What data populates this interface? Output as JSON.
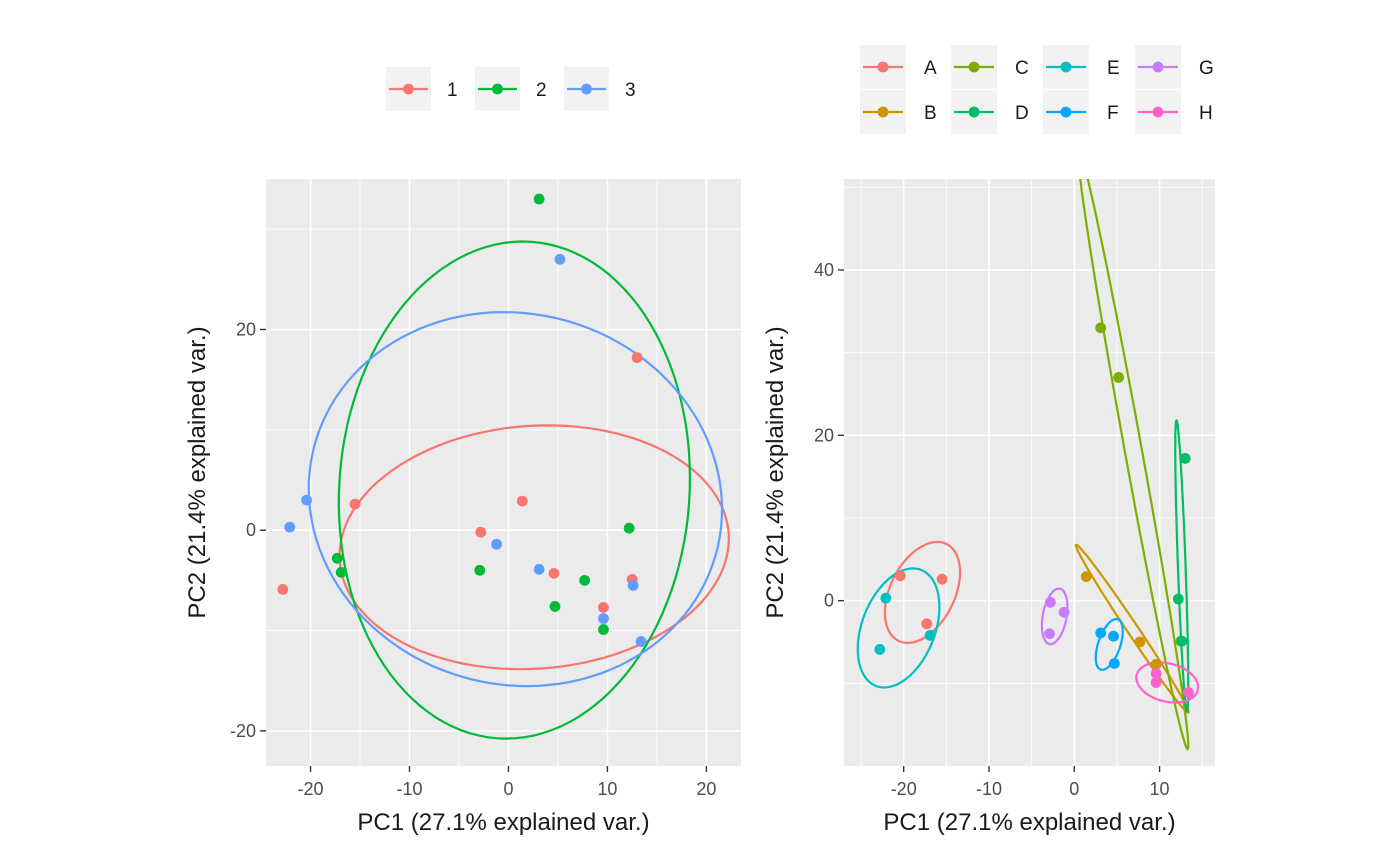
{
  "colors": {
    "panel_background": "#ebebeb",
    "grid": "#ffffff"
  },
  "chart_data": [
    {
      "type": "scatter",
      "xlabel": "PC1 (27.1% explained var.)",
      "ylabel": "PC2 (21.4% explained var.)",
      "xlim": [
        -24.5,
        23.5
      ],
      "ylim": [
        -23.5,
        35
      ],
      "x_ticks": [
        -20,
        -10,
        0,
        10,
        20
      ],
      "y_ticks": [
        -20,
        0,
        20
      ],
      "x_tick_labels": [
        "-20",
        "-10",
        "0",
        "10",
        "20"
      ],
      "y_tick_labels": [
        "-20",
        "0",
        "20"
      ],
      "grid": true,
      "legend_position": "top",
      "series": [
        {
          "name": "1",
          "color": "#F8766D",
          "points": [
            [
              -22.8,
              -5.9
            ],
            [
              -15.5,
              2.6
            ],
            [
              -2.8,
              -0.2
            ],
            [
              1.4,
              2.9
            ],
            [
              4.6,
              -4.3
            ],
            [
              9.6,
              -7.7
            ],
            [
              12.5,
              -4.9
            ],
            [
              13.0,
              17.2
            ]
          ],
          "ellipse": {
            "cx": 2.6,
            "cy": -1.7,
            "rx": 19.7,
            "ry": 12.1,
            "angle": 4
          }
        },
        {
          "name": "2",
          "color": "#00BA38",
          "points": [
            [
              -17.3,
              -2.8
            ],
            [
              -16.9,
              -4.2
            ],
            [
              -2.9,
              -4.0
            ],
            [
              3.1,
              33.0
            ],
            [
              4.7,
              -7.6
            ],
            [
              7.7,
              -5.0
            ],
            [
              9.6,
              -9.9
            ],
            [
              12.2,
              0.2
            ]
          ],
          "ellipse": {
            "cx": 0.6,
            "cy": 4.0,
            "rx": 17.7,
            "ry": 24.8,
            "angle": -4
          }
        },
        {
          "name": "3",
          "color": "#619CFF",
          "points": [
            [
              -22.1,
              0.3
            ],
            [
              -20.4,
              3.0
            ],
            [
              -1.2,
              -1.4
            ],
            [
              3.1,
              -3.9
            ],
            [
              5.2,
              27.0
            ],
            [
              9.6,
              -8.8
            ],
            [
              12.6,
              -5.5
            ],
            [
              13.4,
              -11.1
            ]
          ],
          "ellipse": {
            "cx": 0.7,
            "cy": 3.1,
            "rx": 21.0,
            "ry": 18.5,
            "angle": -13
          }
        }
      ]
    },
    {
      "type": "scatter",
      "xlabel": "PC1 (27.1% explained var.)",
      "ylabel": "PC2 (21.4% explained var.)",
      "xlim": [
        -27,
        16.5
      ],
      "ylim": [
        -20,
        51
      ],
      "x_ticks": [
        -20,
        -10,
        0,
        10
      ],
      "y_ticks": [
        0,
        20,
        40
      ],
      "x_tick_labels": [
        "-20",
        "-10",
        "0",
        "10"
      ],
      "y_tick_labels": [
        "0",
        "20",
        "40"
      ],
      "grid": true,
      "legend_position": "top",
      "series": [
        {
          "name": "A",
          "color": "#F8766D",
          "points": [
            [
              -20.4,
              3.0
            ],
            [
              -15.5,
              2.6
            ],
            [
              -17.3,
              -2.8
            ]
          ],
          "ellipse": {
            "cx": -17.8,
            "cy": 1.0,
            "rx": 3.8,
            "ry": 6.5,
            "angle": -25
          }
        },
        {
          "name": "B",
          "color": "#CD9600",
          "points": [
            [
              1.4,
              2.9
            ],
            [
              7.7,
              -5.0
            ],
            [
              9.6,
              -7.7
            ]
          ],
          "ellipse": {
            "cx": 6.8,
            "cy": -3.4,
            "rx": 12.1,
            "ry": 0.65,
            "angle": -57
          }
        },
        {
          "name": "C",
          "color": "#7CAE00",
          "points": [
            [
              3.1,
              33.0
            ],
            [
              5.2,
              27.0
            ],
            [
              12.5,
              -4.9
            ]
          ],
          "ellipse": {
            "cx": 6.9,
            "cy": 18.3,
            "rx": 36.8,
            "ry": 1.0,
            "angle": -80
          }
        },
        {
          "name": "D",
          "color": "#00BE67",
          "points": [
            [
              12.2,
              0.2
            ],
            [
              13.0,
              17.2
            ],
            [
              12.6,
              -4.9
            ]
          ],
          "ellipse": {
            "cx": 12.6,
            "cy": 4.2,
            "rx": 17.6,
            "ry": 0.45,
            "angle": -88
          }
        },
        {
          "name": "E",
          "color": "#00BFC4",
          "points": [
            [
              -22.1,
              0.3
            ],
            [
              -22.8,
              -5.9
            ],
            [
              -16.9,
              -4.2
            ]
          ],
          "ellipse": {
            "cx": -20.6,
            "cy": -3.3,
            "rx": 4.3,
            "ry": 7.5,
            "angle": -20
          }
        },
        {
          "name": "F",
          "color": "#00A9FF",
          "points": [
            [
              3.1,
              -3.9
            ],
            [
              4.6,
              -4.3
            ],
            [
              4.7,
              -7.6
            ]
          ],
          "ellipse": {
            "cx": 4.1,
            "cy": -5.3,
            "rx": 1.3,
            "ry": 3.2,
            "angle": -18
          }
        },
        {
          "name": "G",
          "color": "#C77CFF",
          "points": [
            [
              -2.8,
              -0.2
            ],
            [
              -1.2,
              -1.4
            ],
            [
              -2.9,
              -4.0
            ]
          ],
          "ellipse": {
            "cx": -2.3,
            "cy": -1.9,
            "rx": 1.4,
            "ry": 3.4,
            "angle": -10
          }
        },
        {
          "name": "H",
          "color": "#FF61CC",
          "points": [
            [
              9.6,
              -8.8
            ],
            [
              9.6,
              -9.9
            ],
            [
              13.4,
              -11.1
            ]
          ],
          "ellipse": {
            "cx": 10.9,
            "cy": -9.9,
            "rx": 3.7,
            "ry": 2.3,
            "angle": -15
          }
        }
      ]
    }
  ]
}
